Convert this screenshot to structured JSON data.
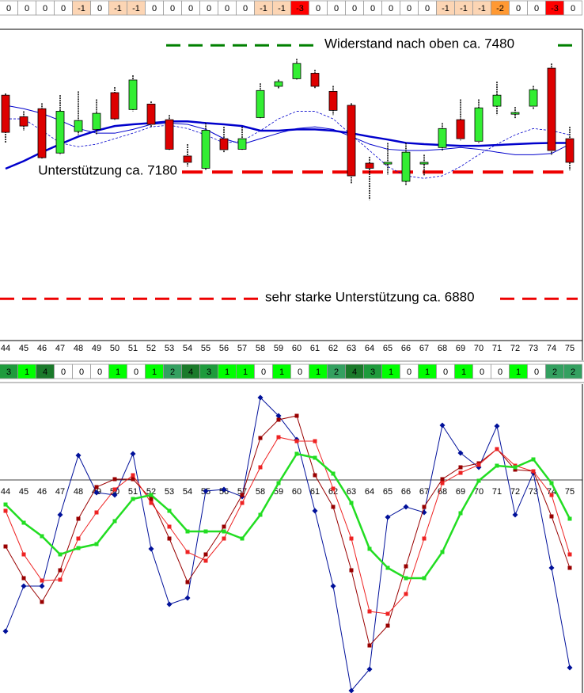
{
  "palette": {
    "-3": "#ff0000",
    "-2": "#ff9933",
    "-1": "#fcd5b4",
    "0": "#ffffff",
    "1": "#00ff00",
    "2": "#33a060",
    "3": "#1e9b3c",
    "4": "#1a7a2a"
  },
  "top_row": [
    0,
    0,
    0,
    0,
    -1,
    0,
    -1,
    -1,
    0,
    0,
    0,
    0,
    0,
    0,
    -1,
    -1,
    -3,
    0,
    0,
    0,
    0,
    0,
    0,
    0,
    -1,
    -1,
    -1,
    -2,
    0,
    0,
    -3,
    0
  ],
  "middle_row": [
    3,
    1,
    4,
    0,
    0,
    0,
    1,
    0,
    1,
    2,
    4,
    3,
    1,
    1,
    0,
    1,
    0,
    1,
    2,
    4,
    3,
    1,
    0,
    1,
    0,
    1,
    0,
    0,
    1,
    0,
    2,
    2
  ],
  "chart_data": [
    {
      "type": "candlestick",
      "categories": [
        44,
        45,
        46,
        47,
        48,
        49,
        50,
        51,
        52,
        53,
        54,
        55,
        56,
        57,
        58,
        59,
        60,
        61,
        62,
        63,
        64,
        65,
        66,
        67,
        68,
        69,
        70,
        71,
        72,
        73,
        74,
        75
      ],
      "open": [
        7362,
        7311,
        7330,
        7225,
        7276,
        7281,
        7368,
        7328,
        7341,
        7304,
        7218,
        7189,
        7259,
        7234,
        7309,
        7383,
        7401,
        7414,
        7371,
        7338,
        7201,
        7199,
        7158,
        7199,
        7238,
        7304,
        7253,
        7336,
        7317,
        7336,
        7426,
        7259
      ],
      "high": [
        7366,
        7324,
        7343,
        7362,
        7371,
        7352,
        7381,
        7409,
        7347,
        7315,
        7246,
        7296,
        7287,
        7287,
        7390,
        7399,
        7448,
        7422,
        7384,
        7343,
        7216,
        7249,
        7249,
        7221,
        7296,
        7352,
        7352,
        7394,
        7334,
        7384,
        7437,
        7287
      ],
      "low": [
        7249,
        7278,
        7212,
        7221,
        7268,
        7268,
        7302,
        7324,
        7287,
        7231,
        7193,
        7184,
        7227,
        7231,
        7306,
        7377,
        7399,
        7377,
        7315,
        7152,
        7114,
        7174,
        7148,
        7171,
        7231,
        7255,
        7249,
        7315,
        7306,
        7328,
        7221,
        7184
      ],
      "close": [
        7274,
        7289,
        7214,
        7324,
        7302,
        7319,
        7306,
        7398,
        7293,
        7234,
        7203,
        7279,
        7233,
        7259,
        7373,
        7394,
        7437,
        7383,
        7326,
        7171,
        7189,
        7203,
        7227,
        7203,
        7283,
        7259,
        7332,
        7362,
        7321,
        7375,
        7231,
        7203
      ],
      "up_color": "#33ee33",
      "down_color": "#dd0000",
      "ylim": [
        6781,
        7518
      ],
      "series": [
        {
          "color": "#0000cc",
          "style": "thick",
          "values": [
            7188,
            7206,
            7227,
            7246,
            7264,
            7278,
            7289,
            7293,
            7296,
            7300,
            7300,
            7296,
            7293,
            7289,
            7278,
            7278,
            7281,
            7281,
            7278,
            7272,
            7264,
            7257,
            7249,
            7246,
            7244,
            7242,
            7242,
            7244,
            7246,
            7248,
            7249,
            7249
          ]
        },
        {
          "color": "#0000cc",
          "style": "thin",
          "values": [
            7338,
            7330,
            7319,
            7302,
            7283,
            7272,
            7272,
            7281,
            7293,
            7296,
            7293,
            7281,
            7259,
            7246,
            7259,
            7272,
            7283,
            7287,
            7281,
            7264,
            7246,
            7234,
            7231,
            7231,
            7234,
            7238,
            7234,
            7227,
            7221,
            7221,
            7224,
            7246
          ]
        },
        {
          "color": "#0000cc",
          "style": "dashed",
          "values": [
            7306,
            7306,
            7278,
            7249,
            7240,
            7246,
            7259,
            7272,
            7287,
            7291,
            7283,
            7268,
            7249,
            7253,
            7278,
            7306,
            7324,
            7324,
            7306,
            7268,
            7231,
            7193,
            7171,
            7165,
            7171,
            7193,
            7221,
            7246,
            7268,
            7283,
            7278,
            7268
          ]
        }
      ],
      "levels": [
        {
          "value": 7480,
          "label": "Widerstand nach oben ca. 7480",
          "color": "#008000"
        },
        {
          "value": 7180,
          "label": "Unterstützung ca. 7180",
          "color": "#ee0000"
        },
        {
          "value": 6880,
          "label": "sehr starke Unterstützung ca. 6880",
          "color": "#ee0000"
        }
      ]
    },
    {
      "type": "line",
      "categories": [
        44,
        45,
        46,
        47,
        48,
        49,
        50,
        51,
        52,
        53,
        54,
        55,
        56,
        57,
        58,
        59,
        60,
        61,
        62,
        63,
        64,
        65,
        66,
        67,
        68,
        69,
        70,
        71,
        72,
        73,
        74,
        75
      ],
      "ylim": [
        -269,
        121
      ],
      "series": [
        {
          "color": "#00109a",
          "marker": "diamond",
          "width": 1,
          "values": [
            -191,
            -134,
            -134,
            -44,
            31,
            -16,
            -19,
            33,
            -87,
            -157,
            -149,
            -14,
            -12,
            -21,
            104,
            81,
            51,
            -39,
            -134,
            -266,
            -239,
            -47,
            -34,
            -41,
            69,
            34,
            16,
            68,
            -44,
            9,
            -111,
            -237
          ]
        },
        {
          "color": "#990000",
          "marker": "square",
          "width": 1,
          "values": [
            -84,
            -124,
            -154,
            -114,
            -49,
            -9,
            1,
            1,
            -24,
            -74,
            -129,
            -94,
            -59,
            -19,
            53,
            76,
            81,
            6,
            -34,
            -114,
            -209,
            -184,
            -109,
            -34,
            1,
            16,
            21,
            39,
            13,
            11,
            -46,
            -111
          ]
        },
        {
          "color": "#ee2222",
          "marker": "square",
          "width": 1,
          "values": [
            -39,
            -94,
            -127,
            -126,
            -74,
            -41,
            -12,
            6,
            -29,
            -59,
            -91,
            -102,
            -74,
            -29,
            16,
            54,
            49,
            49,
            -11,
            -74,
            -166,
            -169,
            -144,
            -74,
            -4,
            9,
            19,
            39,
            18,
            11,
            -19,
            -94
          ]
        },
        {
          "color": "#22dd22",
          "marker": "square",
          "width": 2.5,
          "values": [
            -31,
            -54,
            -71,
            -94,
            -86,
            -81,
            -52,
            -24,
            -19,
            -39,
            -65,
            -65,
            -65,
            -74,
            -44,
            -4,
            33,
            28,
            8,
            -29,
            -87,
            -111,
            -124,
            -124,
            -91,
            -42,
            -1,
            18,
            16,
            26,
            -4,
            -49
          ]
        }
      ]
    }
  ]
}
